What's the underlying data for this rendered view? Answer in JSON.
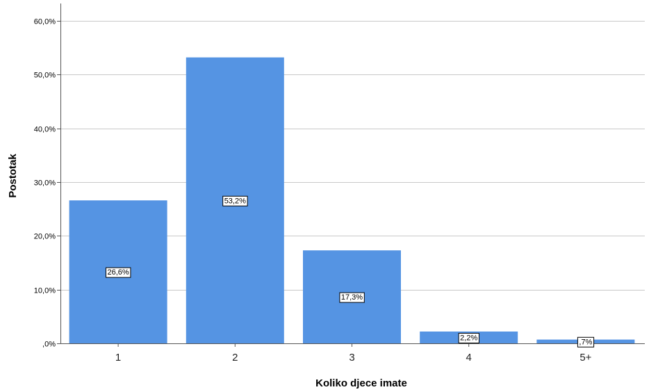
{
  "chart_data": {
    "type": "bar",
    "categories": [
      "1",
      "2",
      "3",
      "4",
      "5+"
    ],
    "values": [
      26.6,
      53.2,
      17.3,
      2.2,
      0.7
    ],
    "data_labels": [
      "26,6%",
      "53,2%",
      "17,3%",
      "2,2%",
      ",7%"
    ],
    "xlabel": "Koliko djece imate",
    "ylabel": "Postotak",
    "ylim": [
      0,
      60
    ],
    "yticks": [
      0,
      10,
      20,
      30,
      40,
      50,
      60
    ],
    "ytick_labels": [
      ",0%",
      "10,0%",
      "20,0%",
      "30,0%",
      "40,0%",
      "50,0%",
      "60,0%"
    ],
    "grid": true,
    "bar_color": "#5594e3"
  }
}
